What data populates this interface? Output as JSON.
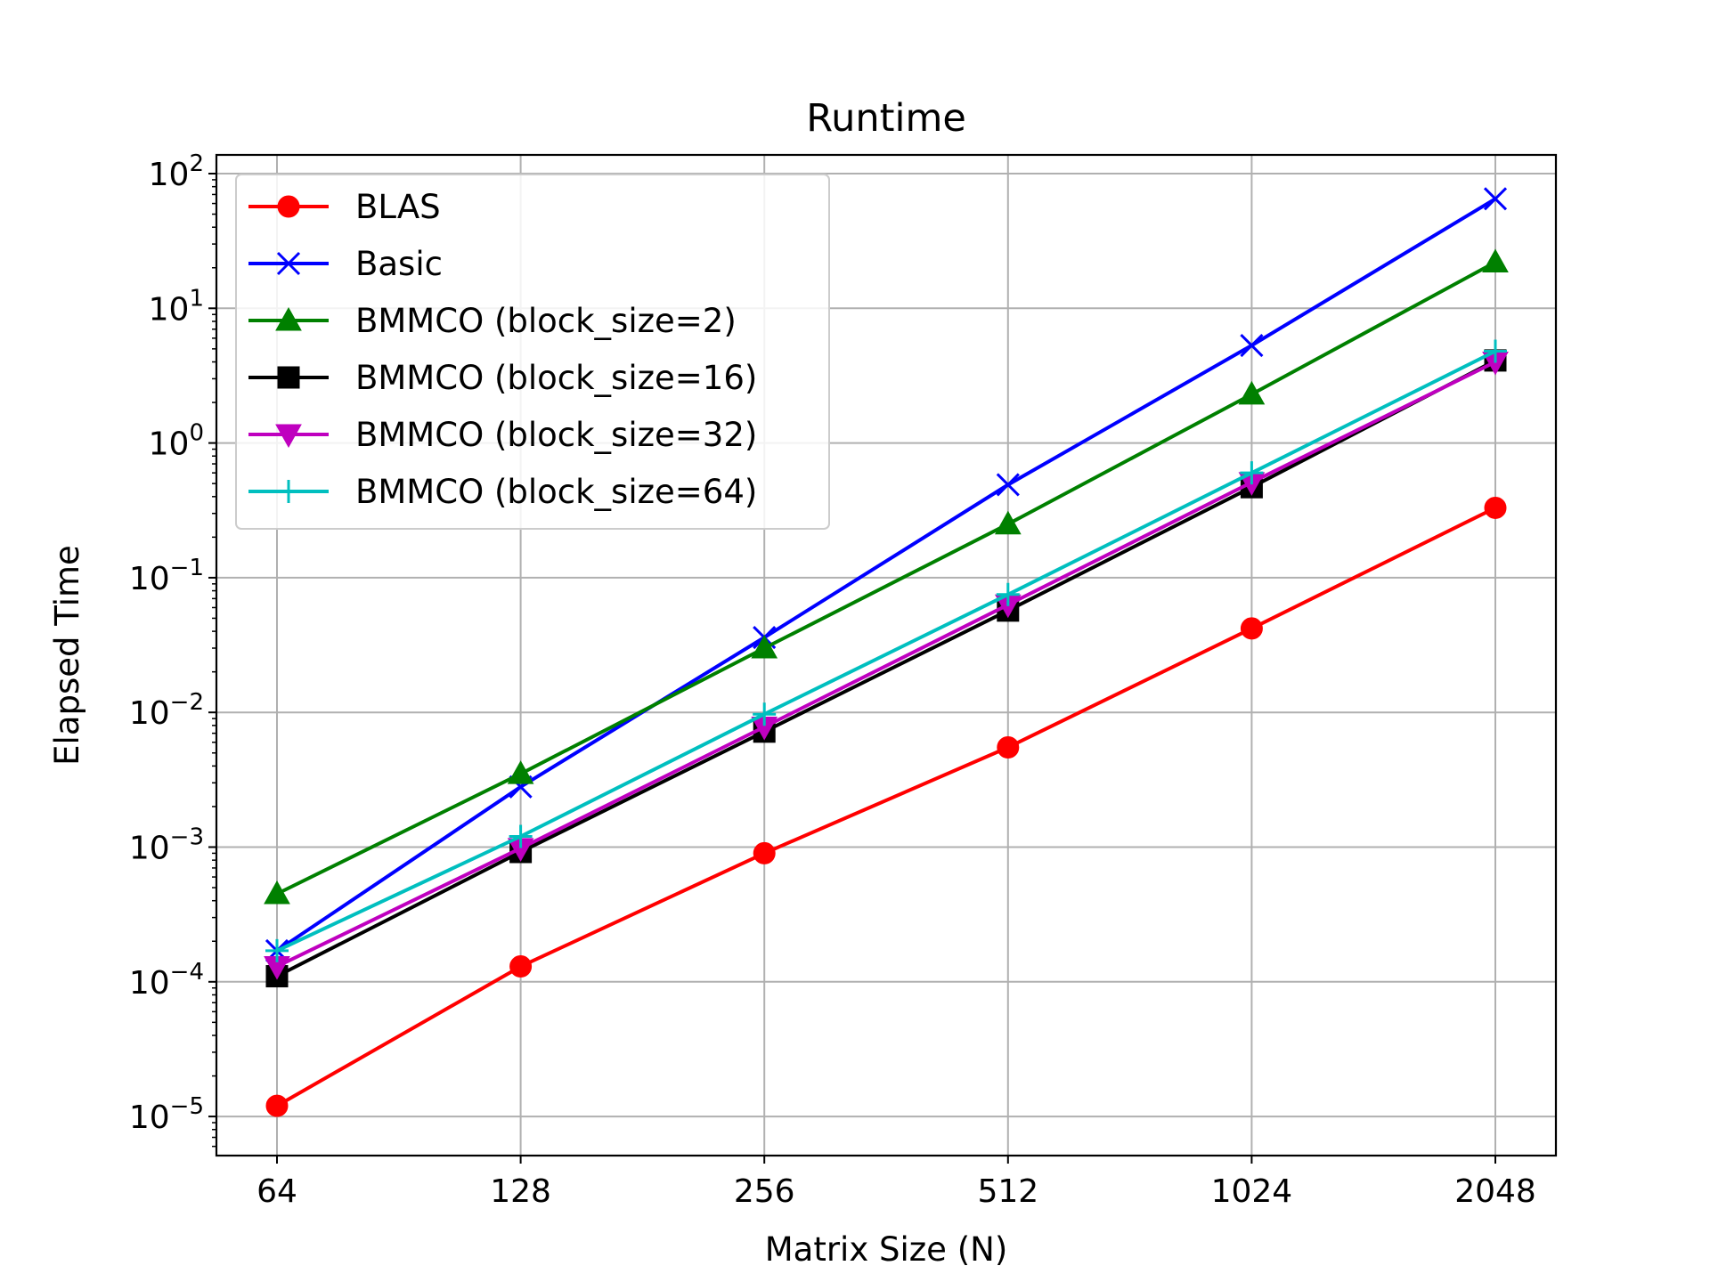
{
  "chart_data": {
    "type": "line",
    "title": "Runtime",
    "xlabel": "Matrix Size (N)",
    "ylabel": "Elapsed Time",
    "xscale": "log2",
    "yscale": "log10",
    "x": [
      64,
      128,
      256,
      512,
      1024,
      2048
    ],
    "x_tick_labels": [
      "64",
      "128",
      "256",
      "512",
      "1024",
      "2048"
    ],
    "y_ticks": [
      {
        "base": "10",
        "exp": "−5",
        "value": 1e-05
      },
      {
        "base": "10",
        "exp": "−4",
        "value": 0.0001
      },
      {
        "base": "10",
        "exp": "−3",
        "value": 0.001
      },
      {
        "base": "10",
        "exp": "−2",
        "value": 0.01
      },
      {
        "base": "10",
        "exp": "−1",
        "value": 0.1
      },
      {
        "base": "10",
        "exp": "0",
        "value": 1
      },
      {
        "base": "10",
        "exp": "1",
        "value": 10
      },
      {
        "base": "10",
        "exp": "2",
        "value": 100
      }
    ],
    "grid": true,
    "legend_position": "top-left",
    "series": [
      {
        "name": "BLAS",
        "color": "#ff0000",
        "marker": "circle",
        "values": [
          1.2e-05,
          0.00013,
          0.0009,
          0.0055,
          0.042,
          0.33
        ]
      },
      {
        "name": "Basic",
        "color": "#0000ff",
        "marker": "x",
        "values": [
          0.00017,
          0.0028,
          0.036,
          0.49,
          5.3,
          65
        ]
      },
      {
        "name": "BMMCO (block_size=2)",
        "color": "#008000",
        "marker": "triangle-up",
        "values": [
          0.00045,
          0.0035,
          0.03,
          0.25,
          2.3,
          22
        ]
      },
      {
        "name": "BMMCO (block_size=16)",
        "color": "#000000",
        "marker": "square",
        "values": [
          0.00011,
          0.00092,
          0.0072,
          0.057,
          0.47,
          4.1
        ]
      },
      {
        "name": "BMMCO (block_size=32)",
        "color": "#bf00bf",
        "marker": "triangle-down",
        "values": [
          0.00013,
          0.00098,
          0.0078,
          0.063,
          0.51,
          4.0
        ]
      },
      {
        "name": "BMMCO (block_size=64)",
        "color": "#00bfbf",
        "marker": "plus",
        "values": [
          0.00017,
          0.0012,
          0.0097,
          0.075,
          0.6,
          4.8
        ]
      }
    ]
  }
}
